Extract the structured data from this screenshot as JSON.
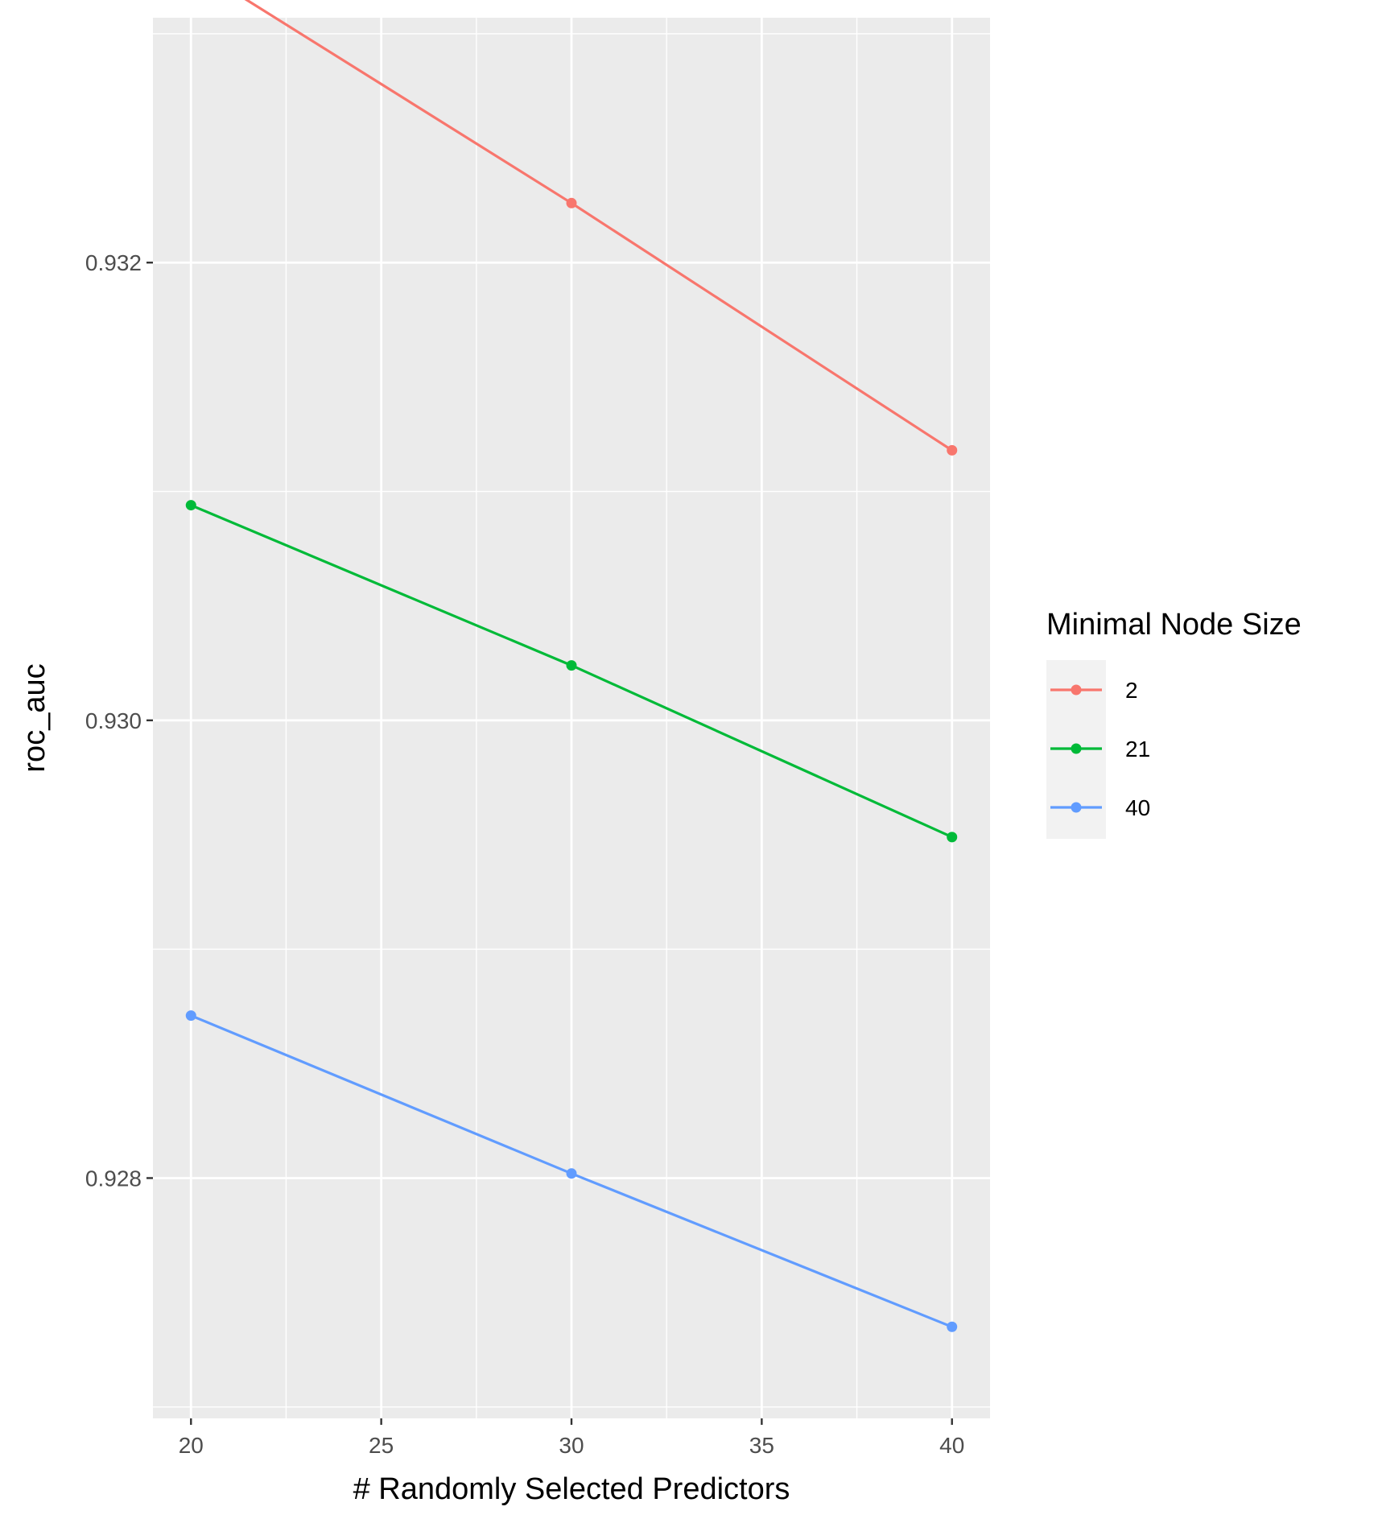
{
  "chart_data": {
    "type": "line",
    "title": "",
    "xlabel": "# Randomly Selected Predictors",
    "ylabel": "roc_auc",
    "x": [
      20,
      30,
      40
    ],
    "xticks": [
      20,
      25,
      30,
      35,
      40
    ],
    "yticks": [
      0.928,
      0.93,
      0.932
    ],
    "xlim": [
      19,
      41
    ],
    "ylim": [
      0.92695,
      0.93307
    ],
    "grid": true,
    "legend": {
      "title": "Minimal Node Size",
      "placement": "right"
    },
    "series": [
      {
        "name": " 2",
        "color": "#F8766D",
        "values": [
          0.9333,
          0.93226,
          0.93118
        ]
      },
      {
        "name": "21",
        "color": "#00BA38",
        "values": [
          0.93094,
          0.93024,
          0.92949
        ]
      },
      {
        "name": "40",
        "color": "#619CFF",
        "values": [
          0.92871,
          0.92802,
          0.92735
        ]
      }
    ]
  }
}
